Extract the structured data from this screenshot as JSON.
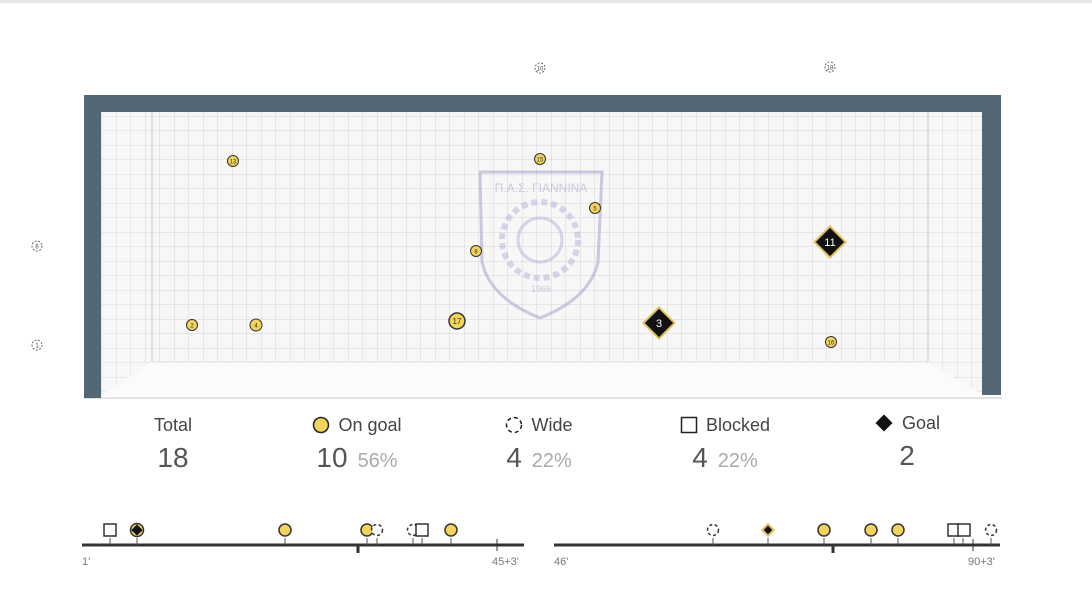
{
  "crest": {
    "text_top": "Π.Α.Σ. ΓΙΑΝΝΙΝΑ",
    "text_year": "1966"
  },
  "outside_markers": [
    "10",
    "18",
    "6",
    "1"
  ],
  "shots": [
    {
      "num": "13",
      "type": "on_goal"
    },
    {
      "num": "15",
      "type": "on_goal"
    },
    {
      "num": "5",
      "type": "on_goal"
    },
    {
      "num": "8",
      "type": "on_goal"
    },
    {
      "num": "11",
      "type": "goal"
    },
    {
      "num": "2",
      "type": "on_goal"
    },
    {
      "num": "4",
      "type": "on_goal"
    },
    {
      "num": "17",
      "type": "on_goal"
    },
    {
      "num": "3",
      "type": "goal"
    },
    {
      "num": "16",
      "type": "on_goal"
    }
  ],
  "stats": {
    "total": {
      "label": "Total",
      "value": "18"
    },
    "on_goal": {
      "label": "On goal",
      "value": "10",
      "pct": "56%"
    },
    "wide": {
      "label": "Wide",
      "value": "4",
      "pct": "22%"
    },
    "blocked": {
      "label": "Blocked",
      "value": "4",
      "pct": "22%"
    },
    "goal": {
      "label": "Goal",
      "value": "2"
    }
  },
  "timeline": {
    "first_half": {
      "start_label": "1'",
      "end_label": "45+3'"
    },
    "second_half": {
      "start_label": "46'",
      "end_label": "90+3'"
    }
  },
  "colors": {
    "frame": "#536775",
    "on_goal_fill": "#f2d35c",
    "goal_fill": "#111111",
    "goal_border": "#e0c05a",
    "grid": "#d4d4d4"
  }
}
